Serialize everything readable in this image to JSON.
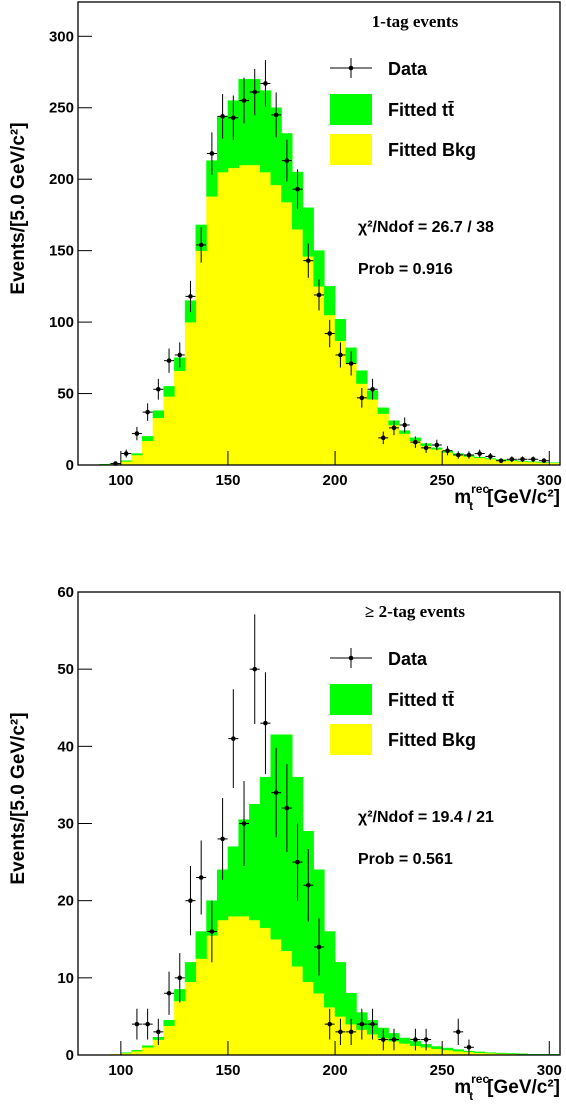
{
  "chart_data": [
    {
      "type": "histogram",
      "title": "1-tag events",
      "ylabel": "Events/[5.0 GeV/c²]",
      "xlabel": {
        "symbol": "m",
        "sub": "t",
        "sup": "rec",
        "unit": "[GeV/c²]"
      },
      "chi2": "χ²/Ndof = 26.7 / 38",
      "prob": "Prob = 0.916",
      "xlim": [
        80,
        305
      ],
      "ylim": [
        0,
        324
      ],
      "xticks": [
        100,
        150,
        200,
        250,
        300
      ],
      "yticks": [
        0,
        50,
        100,
        150,
        200,
        250,
        300
      ],
      "bins": [
        80,
        85,
        90,
        95,
        100,
        105,
        110,
        115,
        120,
        125,
        130,
        135,
        140,
        145,
        150,
        155,
        160,
        165,
        170,
        175,
        180,
        185,
        190,
        195,
        200,
        205,
        210,
        215,
        220,
        225,
        230,
        235,
        240,
        245,
        250,
        255,
        260,
        265,
        270,
        275,
        280,
        285,
        290,
        295,
        300,
        305
      ],
      "series": [
        {
          "name": "Fitted Bkg",
          "color": "#ffff00",
          "values": [
            0,
            0,
            0.4,
            0.8,
            2.5,
            7,
            17,
            33,
            48,
            66,
            100,
            150,
            188,
            205,
            208,
            210,
            210,
            205,
            196,
            184,
            165,
            146,
            125,
            105,
            87,
            71,
            57,
            46,
            36,
            28,
            22,
            17,
            13.5,
            11,
            8.8,
            7.4,
            6,
            5,
            4.2,
            3.5,
            3,
            2.5,
            2.1,
            1.8,
            1.5
          ]
        },
        {
          "name": "Fitted tt̄",
          "color": "#00ff00",
          "values": [
            0,
            0,
            0.1,
            0.2,
            0.5,
            1,
            3,
            5,
            7,
            9,
            15,
            18,
            25,
            39,
            47,
            60,
            60,
            57,
            54,
            48,
            40,
            34,
            25,
            20,
            15,
            11,
            9,
            6,
            4,
            3,
            2,
            2,
            1.5,
            1,
            0.7,
            0.6,
            0.5,
            0.5,
            0.3,
            0.3,
            0.2,
            0.2,
            0.2,
            0.1,
            0.1
          ]
        }
      ],
      "data": {
        "name": "Data",
        "color": "#000000",
        "x": [
          97.5,
          102.5,
          107.5,
          112.5,
          117.5,
          122.5,
          127.5,
          132.5,
          137.5,
          142.5,
          147.5,
          152.5,
          157.5,
          162.5,
          167.5,
          172.5,
          177.5,
          182.5,
          187.5,
          192.5,
          197.5,
          202.5,
          207.5,
          212.5,
          217.5,
          222.5,
          227.5,
          232.5,
          237.5,
          242.5,
          247.5,
          252.5,
          257.5,
          262.5,
          267.5,
          272.5,
          277.5,
          282.5,
          287.5,
          292.5,
          297.5
        ],
        "values": [
          1,
          8,
          22,
          37,
          53,
          73,
          77,
          118,
          154,
          218,
          244,
          243,
          255,
          261,
          267,
          245,
          213,
          193,
          143,
          119,
          92,
          77,
          71,
          47,
          53,
          19,
          26,
          28,
          16,
          12,
          14,
          10,
          7,
          7,
          8,
          6,
          3,
          4,
          4,
          4,
          3
        ],
        "errors": [
          1,
          2.8,
          4.7,
          6.1,
          7.3,
          8.5,
          8.8,
          10.9,
          12.4,
          14.8,
          15.6,
          15.6,
          16,
          16.2,
          16.3,
          15.7,
          14.6,
          13.9,
          12,
          10.9,
          9.6,
          8.8,
          8.4,
          6.9,
          7.3,
          4.4,
          5.1,
          5.3,
          4,
          3.5,
          3.7,
          3.2,
          2.6,
          2.6,
          2.8,
          2.4,
          1.7,
          2,
          2,
          2,
          1.7
        ]
      }
    },
    {
      "type": "histogram",
      "title": "≥ 2-tag events",
      "ylabel": "Events/[5.0 GeV/c²]",
      "xlabel": {
        "symbol": "m",
        "sub": "t",
        "sup": "rec",
        "unit": "[GeV/c²]"
      },
      "chi2": "χ²/Ndof = 19.4 / 21",
      "prob": "Prob = 0.561",
      "xlim": [
        80,
        305
      ],
      "ylim": [
        0,
        60
      ],
      "xticks": [
        100,
        150,
        200,
        250,
        300
      ],
      "yticks": [
        0,
        10,
        20,
        30,
        40,
        50,
        60
      ],
      "bins": [
        80,
        85,
        90,
        95,
        100,
        105,
        110,
        115,
        120,
        125,
        130,
        135,
        140,
        145,
        150,
        155,
        160,
        165,
        170,
        175,
        180,
        185,
        190,
        195,
        200,
        205,
        210,
        215,
        220,
        225,
        230,
        235,
        240,
        245,
        250,
        255,
        260,
        265,
        270,
        275,
        280,
        285,
        290,
        295,
        300,
        305
      ],
      "series": [
        {
          "name": "Fitted Bkg",
          "color": "#ffff00",
          "values": [
            0,
            0,
            0,
            0.1,
            0.25,
            0.5,
            1,
            2,
            3.8,
            7,
            9.5,
            12.5,
            15.5,
            17.5,
            18,
            18,
            17.5,
            16.5,
            15,
            13.5,
            11.5,
            9.5,
            8,
            6.2,
            5,
            4,
            3.3,
            2.7,
            2.2,
            1.8,
            1.5,
            1.2,
            1,
            0.8,
            0.65,
            0.5,
            0.4,
            0.3,
            0.25,
            0.2,
            0.15,
            0.1,
            0.08,
            0.06,
            0.05
          ]
        },
        {
          "name": "Fitted tt̄",
          "color": "#00ff00",
          "values": [
            0,
            0,
            0,
            0,
            0.05,
            0.1,
            0.2,
            0.3,
            0.7,
            1.5,
            2.5,
            3.5,
            4.5,
            6.5,
            9,
            12.5,
            15,
            19.5,
            26.5,
            28,
            24.5,
            19.5,
            16,
            9.8,
            7,
            4,
            2.2,
            1.8,
            1.3,
            1,
            0.7,
            0.6,
            0.4,
            0.3,
            0.25,
            0.2,
            0.1,
            0.1,
            0.05,
            0.05,
            0.05,
            0.05,
            0.02,
            0.04,
            0.05
          ]
        }
      ],
      "data": {
        "name": "Data",
        "color": "#000000",
        "x": [
          107.5,
          112.5,
          117.5,
          122.5,
          127.5,
          132.5,
          137.5,
          142.5,
          147.5,
          152.5,
          157.5,
          162.5,
          167.5,
          172.5,
          177.5,
          182.5,
          187.5,
          192.5,
          197.5,
          202.5,
          207.5,
          212.5,
          217.5,
          222.5,
          227.5,
          237.5,
          242.5,
          257.5,
          262.5
        ],
        "values": [
          4,
          4,
          3,
          8,
          10,
          20,
          23,
          16,
          28,
          41,
          30,
          50,
          43,
          34,
          32,
          25,
          22,
          14,
          4,
          3,
          3,
          4,
          4,
          2,
          2,
          2,
          2,
          3,
          1
        ],
        "errors": [
          2,
          2,
          1.7,
          2.8,
          3.2,
          4.5,
          4.8,
          4,
          5.3,
          6.4,
          5.5,
          7.1,
          6.6,
          5.8,
          5.7,
          5,
          4.7,
          3.7,
          2,
          1.7,
          1.7,
          2,
          2,
          1.4,
          1.4,
          1.4,
          1.4,
          1.7,
          1
        ]
      }
    }
  ]
}
